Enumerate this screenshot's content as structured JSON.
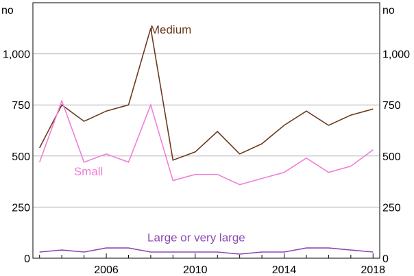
{
  "chart_data": {
    "type": "line",
    "title": "",
    "xlabel": "",
    "ylabel": "",
    "unit_left": "no",
    "unit_right": "no",
    "ylim": [
      0,
      1250
    ],
    "xlim": [
      2002.7,
      2018.3
    ],
    "y_ticks": [
      0,
      250,
      500,
      750,
      1000
    ],
    "y_tick_labels": [
      "0",
      "250",
      "500",
      "750",
      "1,000"
    ],
    "x_ticks": [
      2006,
      2010,
      2014,
      2018
    ],
    "x_tick_labels": [
      "2006",
      "2010",
      "2014",
      "2018"
    ],
    "grid": true,
    "x": [
      2003,
      2004,
      2005,
      2006,
      2007,
      2008,
      2009,
      2010,
      2011,
      2012,
      2013,
      2014,
      2015,
      2016,
      2017,
      2018
    ],
    "series": [
      {
        "name": "Medium",
        "color": "#6b3a1f",
        "values": [
          540,
          750,
          670,
          720,
          750,
          1125,
          480,
          520,
          620,
          510,
          560,
          650,
          720,
          650,
          700,
          730
        ]
      },
      {
        "name": "Small",
        "color": "#f07fd6",
        "values": [
          470,
          770,
          470,
          510,
          470,
          750,
          380,
          410,
          410,
          360,
          390,
          420,
          490,
          420,
          450,
          530
        ]
      },
      {
        "name": "Large or very large",
        "color": "#8b49b5",
        "values": [
          30,
          40,
          30,
          50,
          50,
          30,
          30,
          30,
          30,
          20,
          30,
          30,
          50,
          50,
          40,
          30
        ]
      }
    ]
  }
}
